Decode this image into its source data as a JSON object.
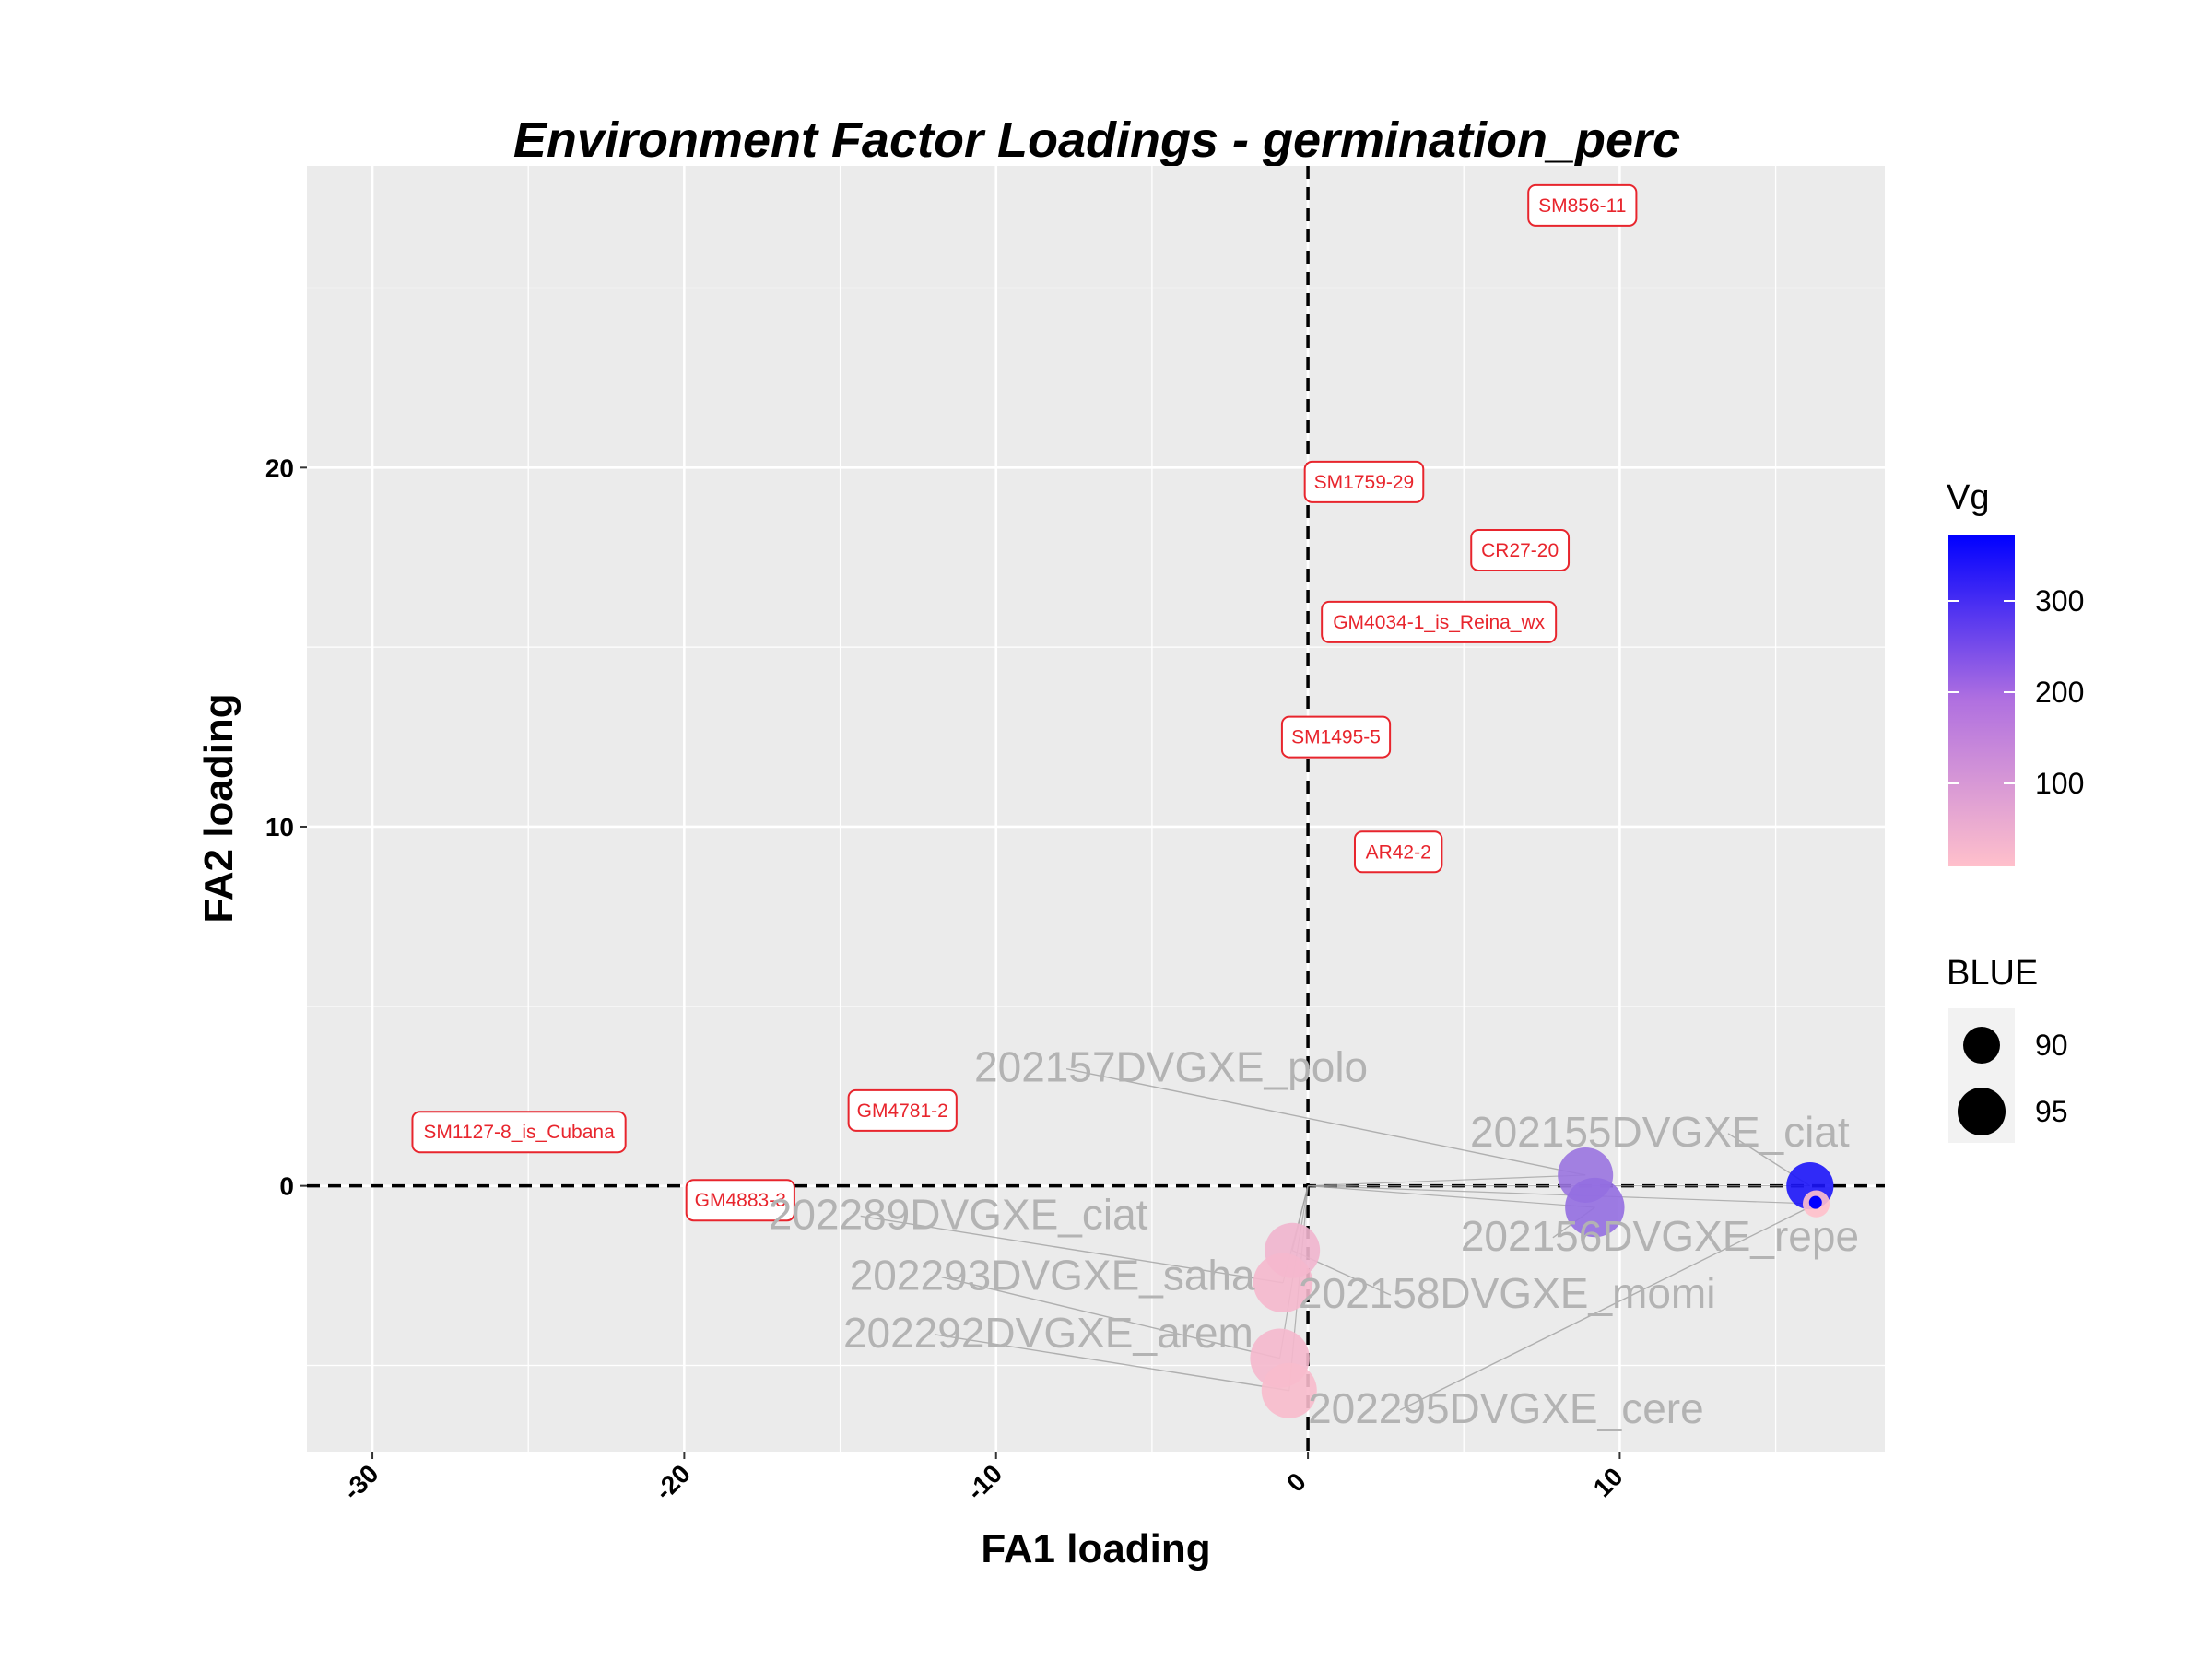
{
  "chart_data": {
    "type": "scatter",
    "title": "Environment Factor Loadings - germination_perc",
    "xlabel": "FA1 loading",
    "ylabel": "FA2 loading",
    "xlim": [
      -32.1,
      18.5
    ],
    "ylim": [
      -7.4,
      28.4
    ],
    "x_ticks": [
      -30,
      -20,
      -10,
      0,
      10
    ],
    "y_ticks": [
      0,
      10,
      20
    ],
    "reference_lines": {
      "x": 0,
      "y": 0,
      "style": "dashed"
    },
    "grid": true,
    "colors": {
      "panel_bg": "#ebebeb",
      "grid": "#ffffff",
      "label_red": "#e8252d",
      "env_text": "#b3b3b3",
      "vg_low": "#ffc0cb",
      "vg_high": "#0000ff",
      "point_blue": "#0000ff"
    },
    "environments": [
      {
        "label": "202157DVGXE_polo",
        "x": 8.9,
        "y": 0.3,
        "vg": 150,
        "blue": 95
      },
      {
        "label": "202155DVGXE_ciat",
        "x": 16.1,
        "y": 0.0,
        "vg": 330,
        "blue": 93
      },
      {
        "label": "202156DVGXE_repe",
        "x": 9.2,
        "y": -0.6,
        "vg": 160,
        "blue": 96
      },
      {
        "label": "202158DVGXE_momi",
        "x": -0.5,
        "y": -1.8,
        "vg": 25,
        "blue": 95
      },
      {
        "label": "202289DVGXE_ciat",
        "x": -0.8,
        "y": -2.7,
        "vg": 20,
        "blue": 96
      },
      {
        "label": "202293DVGXE_saha",
        "x": -0.9,
        "y": -4.8,
        "vg": 20,
        "blue": 96
      },
      {
        "label": "202292DVGXE_arem",
        "x": -0.6,
        "y": -5.7,
        "vg": 15,
        "blue": 95
      },
      {
        "label": "202295DVGXE_cere",
        "x": 16.3,
        "y": -0.5,
        "vg": 5,
        "blue": 88
      }
    ],
    "genotypes": [
      {
        "label": "SM856-11",
        "x": 8.8,
        "y": 27.3
      },
      {
        "label": "SM1759-29",
        "x": 1.8,
        "y": 19.6
      },
      {
        "label": "CR27-20",
        "x": 6.8,
        "y": 17.7
      },
      {
        "label": "GM4034-1_is_Reina_wx",
        "x": 4.2,
        "y": 15.7
      },
      {
        "label": "SM1495-5",
        "x": 0.9,
        "y": 12.5
      },
      {
        "label": "AR42-2",
        "x": 2.9,
        "y": 9.3
      },
      {
        "label": "SM1127-8_is_Cubana",
        "x": -25.3,
        "y": 1.5
      },
      {
        "label": "GM4781-2",
        "x": -13.0,
        "y": 2.1
      },
      {
        "label": "GM4883-3",
        "x": -18.2,
        "y": -0.4
      }
    ],
    "legend": {
      "vg": {
        "title": "Vg",
        "ticks": [
          "300",
          "200",
          "100"
        ],
        "range": [
          5,
          370
        ]
      },
      "blue": {
        "title": "BLUE",
        "ticks": [
          "90",
          "95"
        ]
      }
    }
  }
}
